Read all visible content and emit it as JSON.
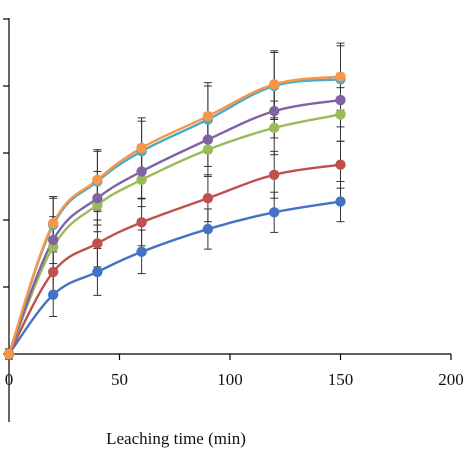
{
  "chart_data": {
    "type": "line",
    "title": "",
    "xlabel": "Leaching time (min)",
    "ylabel": "",
    "xlim": [
      0,
      200
    ],
    "xticks": [
      0,
      50,
      100,
      150,
      200
    ],
    "ylim": [
      -10,
      100
    ],
    "ytick_values": [
      0,
      20,
      40,
      60,
      80,
      100
    ],
    "grid": false,
    "x": [
      0,
      20,
      40,
      60,
      90,
      120,
      150
    ],
    "series": [
      {
        "color": "#4472C4",
        "values": [
          0,
          17.7,
          24.5,
          30.5,
          37.3,
          42.3,
          45.5
        ],
        "errors": [
          1.5,
          6.5,
          7,
          6.5,
          6,
          6,
          6
        ]
      },
      {
        "color": "#C0504D",
        "values": [
          0,
          24.5,
          33,
          39.3,
          46.5,
          53.5,
          56.5
        ],
        "errors": [
          1.5,
          7,
          7,
          7,
          7,
          7,
          7
        ]
      },
      {
        "color": "#9BBB59",
        "values": [
          0,
          32,
          44.5,
          52,
          61,
          67.5,
          71.5
        ],
        "errors": [
          1.5,
          7,
          8,
          8,
          8,
          8,
          8
        ]
      },
      {
        "color": "#8064A2",
        "values": [
          0,
          34,
          46.5,
          54.5,
          64,
          72.5,
          75.8
        ],
        "errors": [
          1.5,
          7,
          8,
          8,
          8,
          8,
          8
        ]
      },
      {
        "color": "#4BACC6",
        "values": [
          0,
          38.5,
          51.5,
          60.5,
          70,
          80,
          82
        ],
        "errors": [
          1.5,
          8,
          9,
          9,
          10,
          10,
          10
        ]
      },
      {
        "color": "#F79646",
        "values": [
          0,
          39,
          52,
          61.5,
          71,
          80.5,
          82.8
        ],
        "errors": [
          1.5,
          8,
          9,
          9,
          10,
          10,
          10
        ]
      }
    ]
  }
}
